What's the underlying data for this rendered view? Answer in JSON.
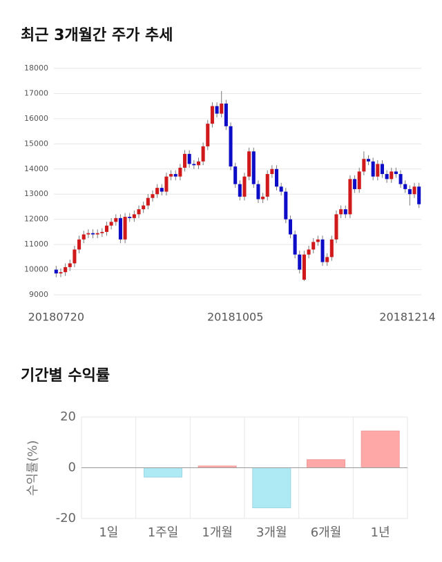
{
  "chart_data": [
    {
      "type": "candlestick",
      "title": "최근 3개월간 주가 추세",
      "categories": [
        "20180720",
        null,
        null,
        null,
        null,
        null,
        null,
        null,
        null,
        null,
        null,
        null,
        null,
        null,
        null,
        null,
        null,
        null,
        null,
        null,
        null,
        null,
        null,
        null,
        null,
        null,
        null,
        null,
        null,
        null,
        null,
        null,
        null,
        null,
        null,
        null,
        null,
        null,
        null,
        "20181005",
        null,
        null,
        null,
        null,
        null,
        null,
        null,
        null,
        null,
        null,
        null,
        null,
        null,
        null,
        null,
        null,
        null,
        null,
        null,
        null,
        null,
        null,
        null,
        null,
        null,
        null,
        null,
        null,
        null,
        null,
        null,
        null,
        null,
        null,
        null,
        null,
        null,
        null,
        null,
        "20181214"
      ],
      "open": [
        10000,
        9850,
        9900,
        10100,
        10250,
        10800,
        11200,
        11400,
        11450,
        11400,
        11450,
        11500,
        11750,
        11900,
        12050,
        11200,
        12100,
        12050,
        12200,
        12400,
        12550,
        12850,
        13000,
        13250,
        13100,
        13700,
        13800,
        13700,
        14050,
        14600,
        14200,
        14150,
        14300,
        14900,
        15800,
        16500,
        16200,
        16600,
        15700,
        14100,
        13400,
        12900,
        13700,
        14700,
        13400,
        12800,
        12900,
        13800,
        14000,
        13300,
        13100,
        12000,
        11400,
        10600,
        9600,
        10600,
        10800,
        11100,
        11200,
        10300,
        10500,
        11200,
        12200,
        12400,
        12200,
        13600,
        13200,
        13900,
        14400,
        14300,
        13700,
        14200,
        13800,
        13600,
        13900,
        13800,
        13400,
        13200,
        13000,
        13300
      ],
      "high": [
        10150,
        10050,
        10250,
        10400,
        10950,
        11350,
        11550,
        11600,
        11600,
        11600,
        11650,
        11900,
        12050,
        12200,
        12200,
        12250,
        12250,
        12350,
        12550,
        12700,
        13000,
        13150,
        13400,
        13400,
        13850,
        13950,
        13950,
        14200,
        14750,
        14750,
        14350,
        14450,
        15050,
        15950,
        16650,
        16650,
        17100,
        16750,
        15850,
        14250,
        13550,
        13850,
        14850,
        14850,
        13550,
        13050,
        13950,
        14150,
        14150,
        13450,
        13250,
        12150,
        11550,
        10750,
        10750,
        10950,
        11250,
        11350,
        11350,
        10650,
        11350,
        12350,
        12550,
        12550,
        13750,
        13750,
        14050,
        14700,
        14550,
        14450,
        14350,
        14350,
        13950,
        14050,
        14050,
        13950,
        13550,
        13350,
        13450,
        13450
      ],
      "low": [
        9700,
        9700,
        9750,
        9950,
        10100,
        10650,
        11050,
        11250,
        11250,
        11250,
        11300,
        11350,
        11600,
        11750,
        11050,
        11050,
        11900,
        11900,
        12050,
        12250,
        12400,
        12700,
        12850,
        12950,
        12950,
        13550,
        13550,
        13550,
        13900,
        14050,
        14000,
        14000,
        14150,
        14750,
        15650,
        16050,
        16050,
        15550,
        13950,
        13250,
        12750,
        12750,
        13550,
        13250,
        12650,
        12650,
        12750,
        13650,
        13150,
        12950,
        11850,
        11250,
        10450,
        9850,
        9550,
        10450,
        10650,
        10950,
        10150,
        10150,
        10350,
        11050,
        12050,
        12050,
        12050,
        13050,
        13050,
        13750,
        14150,
        13550,
        13550,
        13650,
        13450,
        13450,
        13650,
        13250,
        13050,
        12550,
        12850,
        12450
      ],
      "close": [
        9850,
        9900,
        10100,
        10250,
        10800,
        11200,
        11400,
        11450,
        11400,
        11450,
        11500,
        11750,
        11900,
        12050,
        11200,
        12100,
        12050,
        12200,
        12400,
        12550,
        12850,
        13000,
        13250,
        13100,
        13700,
        13800,
        13700,
        14050,
        14600,
        14200,
        14150,
        14300,
        14900,
        15800,
        16500,
        16200,
        16600,
        15700,
        14100,
        13400,
        12900,
        13700,
        14700,
        13400,
        12800,
        12900,
        13800,
        14000,
        13300,
        13100,
        12000,
        11400,
        10600,
        10000,
        10600,
        10800,
        11100,
        11200,
        10300,
        10500,
        11200,
        12200,
        12400,
        12200,
        13600,
        13200,
        13900,
        14400,
        14300,
        13700,
        14200,
        13800,
        13600,
        13900,
        13800,
        13400,
        13200,
        13000,
        13300,
        12600
      ],
      "up_color": "#d0191b",
      "down_color": "#0d0dc8",
      "ylim": [
        9000,
        18000
      ],
      "yticks": [
        9000,
        10000,
        11000,
        12000,
        13000,
        14000,
        15000,
        16000,
        17000,
        18000
      ],
      "grid": true
    },
    {
      "type": "bar",
      "title": "기간별 수익률",
      "ylabel": "수익률(%)",
      "categories": [
        "1일",
        "1주일",
        "1개월",
        "3개월",
        "6개월",
        "1년"
      ],
      "values": [
        0,
        -3.7,
        0.7,
        -15.8,
        3.2,
        14.5
      ],
      "positive_color": "#ffa8a8",
      "negative_color": "#aeeaf3",
      "ylim": [
        -20,
        20
      ],
      "yticks": [
        -20,
        0,
        20
      ],
      "grid": true
    }
  ]
}
